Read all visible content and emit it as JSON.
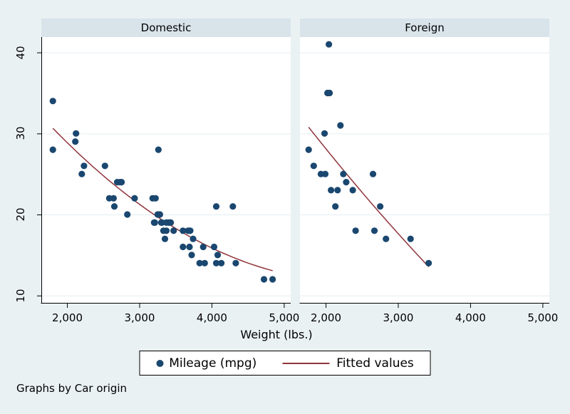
{
  "chart_data": {
    "type": "scatter",
    "by": "Car origin",
    "xlabel": "Weight (lbs.)",
    "caption": "Graphs by Car origin",
    "x_ticks": [
      {
        "v": 2000,
        "label": "2,000"
      },
      {
        "v": 3000,
        "label": "3,000"
      },
      {
        "v": 4000,
        "label": "4,000"
      },
      {
        "v": 5000,
        "label": "5,000"
      }
    ],
    "y_ticks": [
      {
        "v": 10,
        "label": "10"
      },
      {
        "v": 20,
        "label": "20"
      },
      {
        "v": 30,
        "label": "30"
      },
      {
        "v": 40,
        "label": "40"
      }
    ],
    "xlim": [
      1640,
      5090
    ],
    "ylim": [
      9.1,
      41.9
    ],
    "grid": "horizontal",
    "legend": [
      {
        "type": "marker",
        "label": "Mileage (mpg)",
        "color": "#1a476f"
      },
      {
        "type": "line",
        "label": "Fitted values",
        "color": "#90353b"
      }
    ],
    "colors": {
      "marker": "#1a476f",
      "fit": "#90353b"
    },
    "panels": [
      {
        "title": "Domestic",
        "points": [
          [
            2930,
            22
          ],
          [
            3350,
            17
          ],
          [
            2640,
            22
          ],
          [
            3250,
            20
          ],
          [
            4080,
            15
          ],
          [
            3670,
            18
          ],
          [
            2230,
            26
          ],
          [
            3280,
            20
          ],
          [
            3880,
            16
          ],
          [
            3400,
            19
          ],
          [
            4330,
            14
          ],
          [
            3900,
            14
          ],
          [
            4290,
            21
          ],
          [
            2110,
            29
          ],
          [
            3690,
            16
          ],
          [
            3180,
            22
          ],
          [
            3220,
            22
          ],
          [
            2750,
            24
          ],
          [
            3430,
            19
          ],
          [
            2120,
            30
          ],
          [
            3600,
            18
          ],
          [
            3600,
            16
          ],
          [
            3740,
            17
          ],
          [
            1800,
            28
          ],
          [
            2650,
            21
          ],
          [
            4840,
            12
          ],
          [
            4720,
            12
          ],
          [
            3830,
            14
          ],
          [
            2580,
            22
          ],
          [
            4060,
            14
          ],
          [
            3720,
            15
          ],
          [
            3370,
            18
          ],
          [
            4130,
            14
          ],
          [
            2830,
            20
          ],
          [
            4060,
            21
          ],
          [
            3300,
            19
          ],
          [
            3310,
            19
          ],
          [
            3690,
            18
          ],
          [
            3370,
            19
          ],
          [
            2730,
            24
          ],
          [
            4030,
            16
          ],
          [
            3260,
            28
          ],
          [
            1800,
            34
          ],
          [
            2200,
            25
          ],
          [
            2520,
            26
          ],
          [
            3330,
            18
          ],
          [
            3700,
            18
          ],
          [
            3470,
            18
          ],
          [
            3210,
            19
          ],
          [
            3200,
            19
          ],
          [
            3420,
            19
          ],
          [
            2690,
            24
          ]
        ],
        "fit": {
          "type": "quadratic",
          "x_range": [
            1800,
            4840
          ]
        }
      },
      {
        "title": "Foreign",
        "points": [
          [
            2830,
            17
          ],
          [
            2070,
            23
          ],
          [
            2650,
            25
          ],
          [
            2370,
            23
          ],
          [
            2020,
            35
          ],
          [
            2280,
            24
          ],
          [
            2750,
            21
          ],
          [
            2130,
            21
          ],
          [
            2240,
            25
          ],
          [
            1760,
            28
          ],
          [
            1980,
            30
          ],
          [
            3420,
            14
          ],
          [
            1830,
            26
          ],
          [
            2050,
            35
          ],
          [
            2410,
            18
          ],
          [
            2200,
            31
          ],
          [
            2670,
            18
          ],
          [
            2160,
            23
          ],
          [
            2040,
            41
          ],
          [
            1930,
            25
          ],
          [
            1990,
            25
          ],
          [
            3170,
            17
          ]
        ],
        "fit": {
          "type": "quadratic",
          "x_range": [
            1760,
            3420
          ]
        }
      }
    ]
  }
}
